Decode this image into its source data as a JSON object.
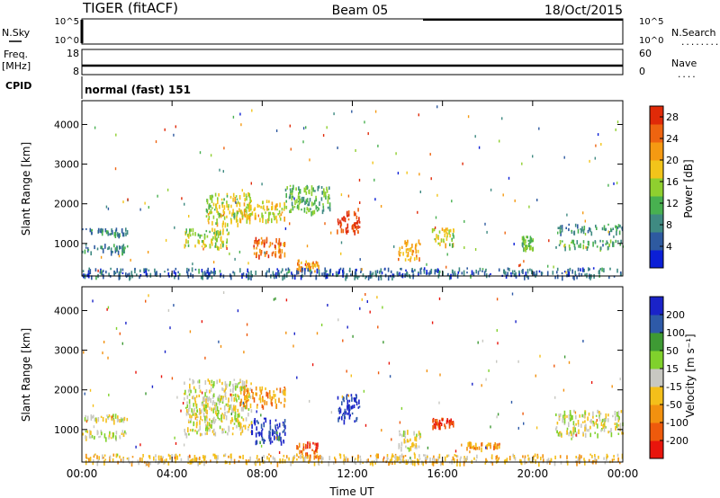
{
  "header": {
    "radar": "TIGER (fitACF)",
    "beam": "Beam 05",
    "date": "18/Oct/2015"
  },
  "status_rows": {
    "nsky_label": "N.Sky",
    "nsearch_label": "N.Search",
    "nsearch_line": "..........",
    "noise_ticks": {
      "top": "10^5",
      "bottom": "10^0"
    },
    "freq_label": "Freq.",
    "freq_unit": "[MHz]",
    "freq_ticks": {
      "top": "18",
      "bottom": "8"
    },
    "nave_label": "Nave",
    "nave_line": "....",
    "nave_ticks": {
      "top": "60",
      "bottom": "0"
    },
    "cpid_label": "CPID",
    "cpid_value": "normal (fast) 151"
  },
  "colors": {
    "power": [
      "#0b1fd6",
      "#2e5aa0",
      "#3f8a82",
      "#48b050",
      "#8fcf2f",
      "#f2c41a",
      "#f59a12",
      "#ee6410",
      "#e02a08"
    ],
    "velocity": [
      "#e8150c",
      "#ee5a0c",
      "#f2910f",
      "#f4bf1a",
      "#c8c8c2",
      "#80d12c",
      "#3e9a34",
      "#2e5aa8",
      "#1a23c8"
    ]
  },
  "chart_data": [
    {
      "type": "heatmap",
      "name": "power",
      "ylabel": "Slant Range [km]",
      "y_ticks": [
        1000,
        2000,
        3000,
        4000
      ],
      "ylim": [
        180,
        4600
      ],
      "colorbar": {
        "label": "Power [dB]",
        "ticks": [
          4,
          8,
          12,
          16,
          20,
          24,
          28
        ],
        "range": [
          0,
          30
        ]
      },
      "echo_regions": [
        {
          "x": [
            0.0,
            2.0
          ],
          "y": [
            800,
            1000
          ],
          "level": 0.3
        },
        {
          "x": [
            0.0,
            2.0
          ],
          "y": [
            1250,
            1400
          ],
          "level": 0.25
        },
        {
          "x": [
            4.5,
            6.5
          ],
          "y": [
            900,
            1400
          ],
          "level": 0.5
        },
        {
          "x": [
            5.5,
            7.5
          ],
          "y": [
            1500,
            2300
          ],
          "level": 0.55
        },
        {
          "x": [
            7.0,
            9.0
          ],
          "y": [
            1600,
            2100
          ],
          "level": 0.6
        },
        {
          "x": [
            7.5,
            9.0
          ],
          "y": [
            700,
            1200
          ],
          "level": 0.8
        },
        {
          "x": [
            9.0,
            11.0
          ],
          "y": [
            1800,
            2500
          ],
          "level": 0.4
        },
        {
          "x": [
            9.5,
            10.5
          ],
          "y": [
            300,
            600
          ],
          "level": 0.75
        },
        {
          "x": [
            11.3,
            12.3
          ],
          "y": [
            1300,
            1900
          ],
          "level": 0.92
        },
        {
          "x": [
            14.0,
            15.0
          ],
          "y": [
            600,
            1100
          ],
          "level": 0.7
        },
        {
          "x": [
            15.5,
            16.5
          ],
          "y": [
            1000,
            1400
          ],
          "level": 0.55
        },
        {
          "x": [
            19.5,
            20.0
          ],
          "y": [
            900,
            1200
          ],
          "level": 0.45
        },
        {
          "x": [
            21.0,
            24.0
          ],
          "y": [
            900,
            1100
          ],
          "level": 0.35
        },
        {
          "x": [
            21.0,
            24.0
          ],
          "y": [
            1300,
            1500
          ],
          "level": 0.3
        },
        {
          "x": [
            0.0,
            24.0
          ],
          "y": [
            180,
            400
          ],
          "level": 0.2
        }
      ]
    },
    {
      "type": "heatmap",
      "name": "velocity",
      "xlabel": "Time UT",
      "ylabel": "Slant Range [km]",
      "x_ticks": [
        "00:00",
        "04:00",
        "08:00",
        "12:00",
        "16:00",
        "20:00",
        "00:00"
      ],
      "xlim": [
        0,
        24
      ],
      "y_ticks": [
        1000,
        2000,
        3000,
        4000
      ],
      "ylim": [
        180,
        4600
      ],
      "colorbar": {
        "label": "Velocity [m s⁻¹]",
        "ticks": [
          "200",
          "100",
          "50",
          "15",
          "-15",
          "-50",
          "-100",
          "-200"
        ]
      },
      "echo_regions": [
        {
          "x": [
            0.0,
            2.0
          ],
          "y": [
            800,
            1000
          ],
          "level": 0.5
        },
        {
          "x": [
            0.0,
            2.0
          ],
          "y": [
            1250,
            1400
          ],
          "level": 0.5
        },
        {
          "x": [
            4.5,
            7.5
          ],
          "y": [
            900,
            2300
          ],
          "level": 0.5
        },
        {
          "x": [
            7.0,
            9.0
          ],
          "y": [
            1600,
            2100
          ],
          "level": 0.3
        },
        {
          "x": [
            7.5,
            9.0
          ],
          "y": [
            700,
            1300
          ],
          "level": 0.9
        },
        {
          "x": [
            9.5,
            10.5
          ],
          "y": [
            300,
            700
          ],
          "level": 0.15
        },
        {
          "x": [
            11.3,
            12.3
          ],
          "y": [
            1200,
            1900
          ],
          "level": 0.95
        },
        {
          "x": [
            14.0,
            15.0
          ],
          "y": [
            500,
            1000
          ],
          "level": 0.5
        },
        {
          "x": [
            15.5,
            16.5
          ],
          "y": [
            1100,
            1300
          ],
          "level": 0.1
        },
        {
          "x": [
            17.0,
            18.5
          ],
          "y": [
            550,
            700
          ],
          "level": 0.3
        },
        {
          "x": [
            21.0,
            24.0
          ],
          "y": [
            900,
            1500
          ],
          "level": 0.5
        },
        {
          "x": [
            0.0,
            24.0
          ],
          "y": [
            180,
            400
          ],
          "level": 0.4
        }
      ]
    }
  ]
}
